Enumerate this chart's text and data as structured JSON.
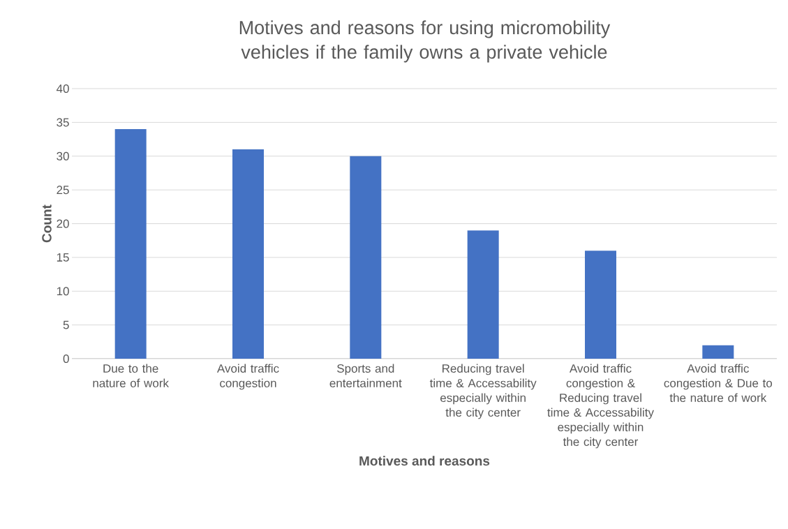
{
  "chart_data": {
    "type": "bar",
    "title": "Motives and reasons for using micromobility vehicles if the family owns a private vehicle",
    "xlabel": "Motives and reasons",
    "ylabel": "Count",
    "categories": [
      "Due to the nature of work",
      "Avoid traffic congestion",
      "Sports and entertainment",
      "Reducing travel time & Accessability especially within the city center",
      "Avoid traffic congestion & Reducing travel time & Accessability especially within the city center",
      "Avoid traffic congestion & Due to the nature of work"
    ],
    "values": [
      34,
      31,
      30,
      19,
      16,
      2
    ],
    "color": "#4472c4",
    "ylim": [
      0,
      40
    ],
    "yticks": [
      0,
      5,
      10,
      15,
      20,
      25,
      30,
      35,
      40
    ],
    "grid": "y"
  }
}
